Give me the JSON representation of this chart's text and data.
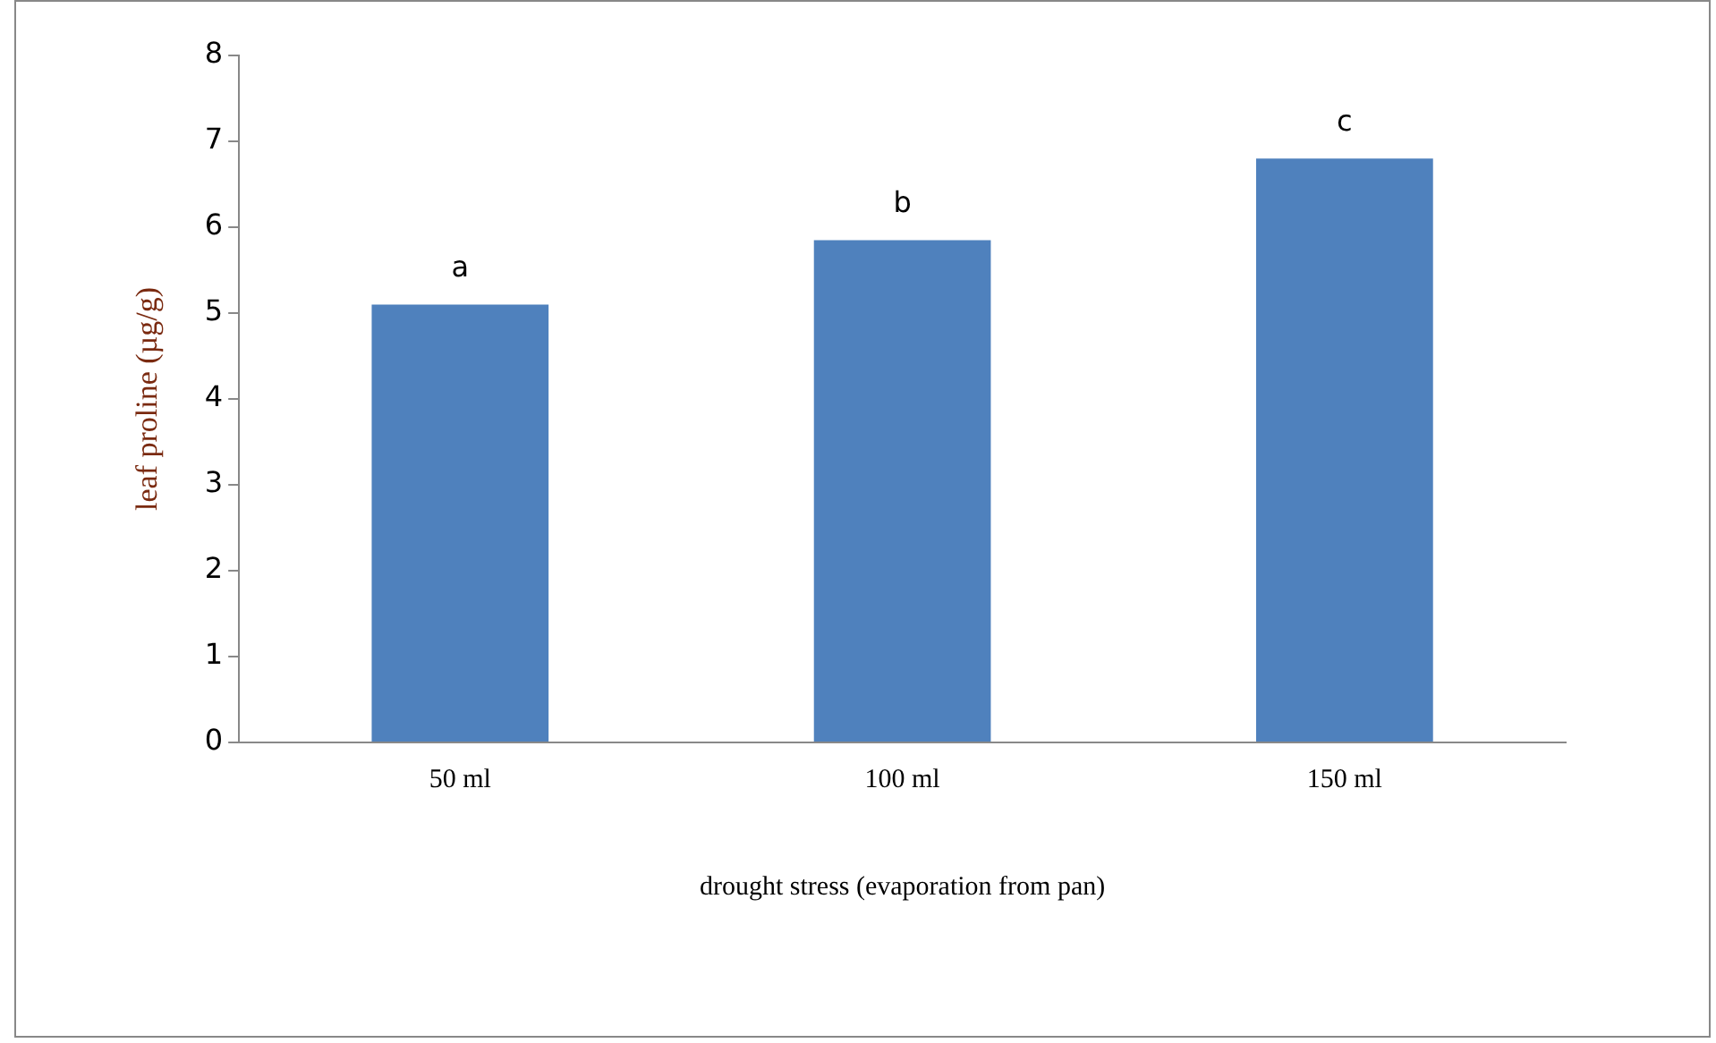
{
  "chart_data": {
    "type": "bar",
    "xlabel": "drought stress (evaporation from pan)",
    "ylabel": "leaf proline (µg/g)",
    "categories": [
      "50 ml",
      "100 ml",
      "150 ml"
    ],
    "values": [
      5.1,
      5.85,
      6.8
    ],
    "color": "#4f81bd",
    "ylim": [
      0,
      8
    ],
    "yticks": [
      0,
      1,
      2,
      3,
      4,
      5,
      6,
      7,
      8
    ],
    "grid": false,
    "legend": false,
    "annotations": [
      {
        "text": "a",
        "x": "50 ml",
        "y": 5.1
      },
      {
        "text": "b",
        "x": "100 ml",
        "y": 5.85
      },
      {
        "text": "c",
        "x": "150 ml",
        "y": 6.8
      }
    ]
  }
}
